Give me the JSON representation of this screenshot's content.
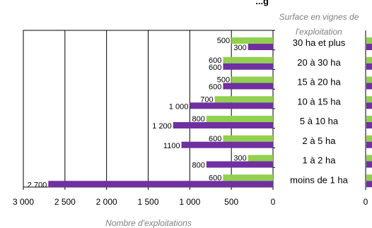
{
  "chart_data": {
    "type": "bar",
    "orientation": "horizontal",
    "title": "...g",
    "right_title": "Surface en vignes de l'exploitation",
    "xlabel": "Nombre d'exploitations",
    "xlim": [
      0,
      3000
    ],
    "x_reversed": true,
    "grid": true,
    "categories": [
      "30 ha et plus",
      "20 à 30 ha",
      "15  à 20 ha",
      "10 à 15 ha",
      "5 à 10 ha",
      "2 à 5 ha",
      "1 à 2 ha",
      "moins de 1 ha"
    ],
    "series": [
      {
        "color": "#92d050",
        "values": [
          500,
          600,
          500,
          700,
          800,
          600,
          300,
          600
        ],
        "labels": [
          "500",
          "600",
          "500",
          "700",
          "800",
          "600",
          "300",
          "600"
        ]
      },
      {
        "color": "#7030a0",
        "values": [
          300,
          600,
          600,
          1000,
          1200,
          1100,
          800,
          2700
        ],
        "labels": [
          "300",
          "600",
          "600",
          "1 000",
          "1 200",
          "1100",
          "800",
          "2 700"
        ]
      }
    ],
    "xticks": [
      3000,
      2500,
      2000,
      1500,
      1000,
      500,
      0
    ],
    "xtick_labels": [
      "3 000",
      "2 500",
      "2 000",
      "1 500",
      "1 000",
      "500",
      "0"
    ],
    "second_panel_tick": "0"
  }
}
